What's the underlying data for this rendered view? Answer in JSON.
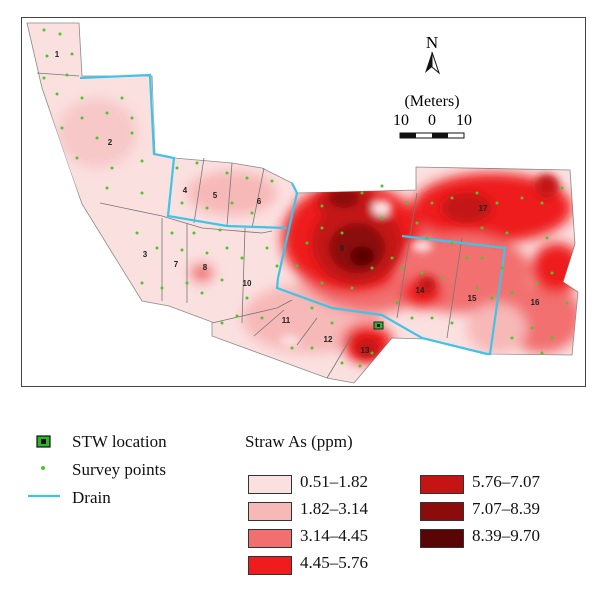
{
  "map": {
    "north_label": "N",
    "scale_title": "(Meters)",
    "scale_ticks": [
      "10",
      "0",
      "10"
    ],
    "plot_labels": [
      "1",
      "2",
      "3",
      "4",
      "5",
      "6",
      "7",
      "8",
      "9",
      "10",
      "11",
      "12",
      "13",
      "14",
      "15",
      "16",
      "17"
    ]
  },
  "legend": {
    "stw_label": "STW location",
    "survey_label": "Survey points",
    "drain_label": "Drain",
    "straw_title": "Straw As (ppm)",
    "classes": [
      {
        "range": "0.51–1.82",
        "color": "#fbe0e0"
      },
      {
        "range": "1.82–3.14",
        "color": "#f7b8b8"
      },
      {
        "range": "3.14–4.45",
        "color": "#f26f6f"
      },
      {
        "range": "4.45–5.76",
        "color": "#ee1c1c"
      },
      {
        "range": "5.76–7.07",
        "color": "#c41414"
      },
      {
        "range": "7.07–8.39",
        "color": "#8c0c0c"
      },
      {
        "range": "8.39–9.70",
        "color": "#5a0505"
      }
    ]
  },
  "colors": {
    "drain": "#3fc3e8",
    "survey_point": "#4ec62b",
    "stw_fill": "#2bb52b",
    "plot_edge": "#777777"
  }
}
